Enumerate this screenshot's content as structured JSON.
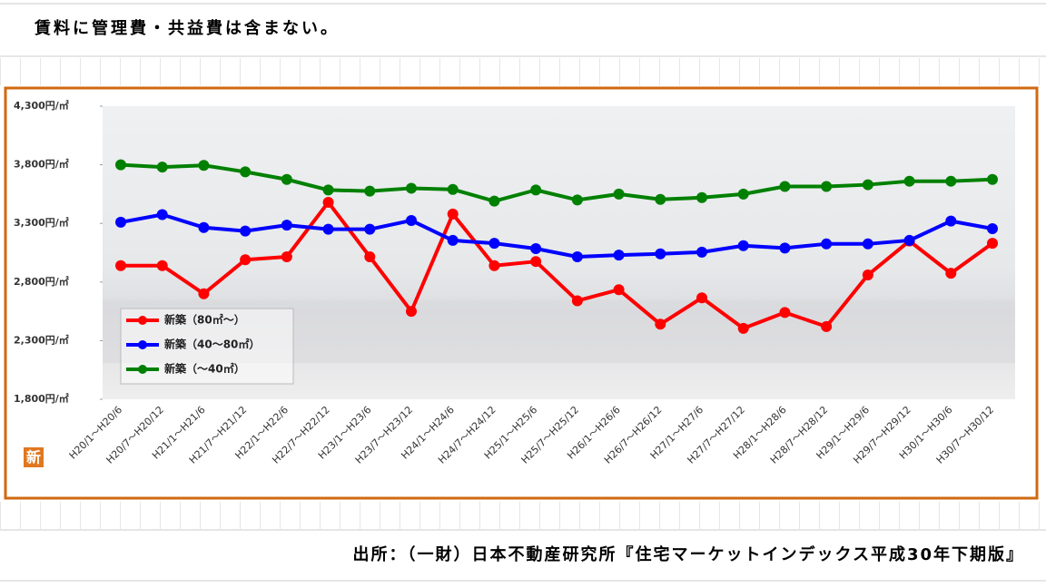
{
  "header": {
    "note": "賃料に管理費・共益費は含まない。"
  },
  "chart_data": {
    "type": "line",
    "categories": [
      "H20/1～H20/6",
      "H20/7～H20/12",
      "H21/1～H21/6",
      "H21/7～H21/12",
      "H22/1～H22/6",
      "H22/7～H22/12",
      "H23/1～H23/6",
      "H23/7～H23/12",
      "H24/1～H24/6",
      "H24/7～H24/12",
      "H25/1～H25/6",
      "H25/7～H25/12",
      "H26/1～H26/6",
      "H26/7～H26/12",
      "H27/1～H27/6",
      "H27/7～H27/12",
      "H28/1～H28/6",
      "H28/7～H28/12",
      "H29/1～H29/6",
      "H29/7～H29/12",
      "H30/1～H30/6",
      "H30/7～H30/12"
    ],
    "series": [
      {
        "name": "新築（80㎡～）",
        "color": "#ff0000",
        "values": [
          2940,
          2940,
          2700,
          2990,
          3015,
          3480,
          3015,
          2550,
          3380,
          2940,
          2975,
          2640,
          2735,
          2440,
          2665,
          2405,
          2540,
          2420,
          2860,
          3150,
          2875,
          3130
        ]
      },
      {
        "name": "新築（40～80㎡）",
        "color": "#0000ff",
        "values": [
          3310,
          3375,
          3265,
          3235,
          3285,
          3250,
          3250,
          3325,
          3155,
          3130,
          3085,
          3015,
          3030,
          3040,
          3055,
          3110,
          3090,
          3125,
          3125,
          3155,
          3320,
          3255
        ]
      },
      {
        "name": "新築（～40㎡）",
        "color": "#008000",
        "values": [
          3800,
          3780,
          3795,
          3740,
          3675,
          3585,
          3575,
          3600,
          3590,
          3490,
          3585,
          3500,
          3550,
          3505,
          3520,
          3550,
          3615,
          3615,
          3630,
          3660,
          3660,
          3675
        ]
      }
    ],
    "ylim": [
      1800,
      4300
    ],
    "yticks": [
      {
        "value": 1800,
        "label": "1,800円/㎡"
      },
      {
        "value": 2300,
        "label": "2,300円/㎡"
      },
      {
        "value": 2800,
        "label": "2,800円/㎡"
      },
      {
        "value": 3300,
        "label": "3,300円/㎡"
      },
      {
        "value": 3800,
        "label": "3,800円/㎡"
      },
      {
        "value": 4300,
        "label": "4,300円/㎡"
      }
    ],
    "legend": "lower left",
    "icon_text": "新"
  },
  "footer": {
    "source": "出所：（一財）日本不動産研究所『住宅マーケットインデックス平成30年下期版』"
  }
}
